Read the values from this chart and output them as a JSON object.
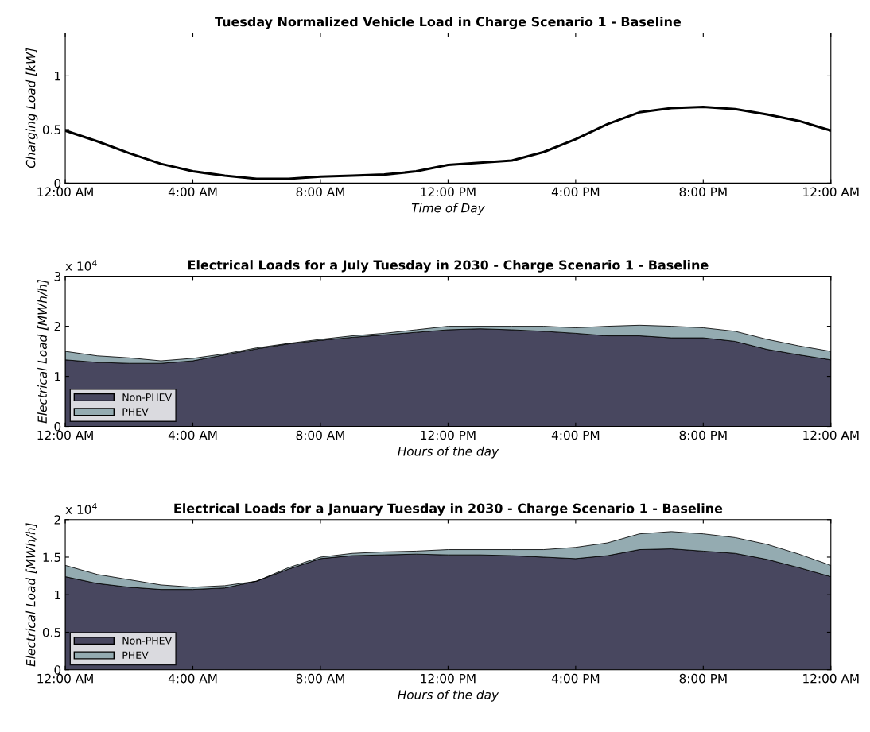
{
  "chart_data": [
    {
      "type": "line",
      "title": "Tuesday Normalized Vehicle Load in Charge Scenario 1 - Baseline",
      "xlabel": "Time of Day",
      "ylabel": "Charging Load [kW]",
      "x": [
        0,
        1,
        2,
        3,
        4,
        5,
        6,
        7,
        8,
        9,
        10,
        11,
        12,
        13,
        14,
        15,
        16,
        17,
        18,
        19,
        20,
        21,
        22,
        23,
        24
      ],
      "series": [
        {
          "color": "#000000",
          "values": [
            0.49,
            0.39,
            0.28,
            0.18,
            0.11,
            0.07,
            0.04,
            0.04,
            0.06,
            0.07,
            0.08,
            0.11,
            0.17,
            0.19,
            0.21,
            0.29,
            0.41,
            0.55,
            0.66,
            0.7,
            0.71,
            0.69,
            0.64,
            0.58,
            0.49
          ]
        }
      ],
      "xlim": [
        0,
        24
      ],
      "xticks": [
        {
          "value": 0,
          "label": "12:00 AM"
        },
        {
          "value": 4,
          "label": "4:00 AM"
        },
        {
          "value": 8,
          "label": "8:00 AM"
        },
        {
          "value": 12,
          "label": "12:00 PM"
        },
        {
          "value": 16,
          "label": "4:00 PM"
        },
        {
          "value": 20,
          "label": "8:00 PM"
        },
        {
          "value": 24,
          "label": "12:00 AM"
        }
      ],
      "ylim": [
        0,
        1.4
      ],
      "yticks": [
        0,
        0.5,
        1
      ],
      "grid": false,
      "legend": false
    },
    {
      "type": "area",
      "stacked": true,
      "title": "Electrical Loads for a July Tuesday in 2030 - Charge Scenario 1 - Baseline",
      "xlabel": "Hours of the day",
      "ylabel": "Electrical Load [MWh/h]",
      "annotations": [
        "x 10$^{4}$"
      ],
      "x": [
        0,
        1,
        2,
        3,
        4,
        5,
        6,
        7,
        8,
        9,
        10,
        11,
        12,
        13,
        14,
        15,
        16,
        17,
        18,
        19,
        20,
        21,
        22,
        23,
        24
      ],
      "series": [
        {
          "name": "Non-PHEV",
          "color": "#48475f",
          "values": [
            1.33,
            1.28,
            1.26,
            1.26,
            1.31,
            1.43,
            1.55,
            1.65,
            1.72,
            1.78,
            1.83,
            1.88,
            1.93,
            1.95,
            1.93,
            1.9,
            1.86,
            1.81,
            1.81,
            1.77,
            1.77,
            1.7,
            1.54,
            1.43,
            1.33
          ]
        },
        {
          "name": "PHEV",
          "color": "#94abb1",
          "values": [
            0.17,
            0.13,
            0.11,
            0.05,
            0.05,
            0.02,
            0.02,
            0.01,
            0.02,
            0.03,
            0.03,
            0.05,
            0.07,
            0.05,
            0.07,
            0.1,
            0.11,
            0.19,
            0.21,
            0.23,
            0.2,
            0.2,
            0.2,
            0.18,
            0.17
          ]
        }
      ],
      "xlim": [
        0,
        24
      ],
      "xticks": [
        {
          "value": 0,
          "label": "12:00 AM"
        },
        {
          "value": 4,
          "label": "4:00 AM"
        },
        {
          "value": 8,
          "label": "8:00 AM"
        },
        {
          "value": 12,
          "label": "12:00 PM"
        },
        {
          "value": 16,
          "label": "4:00 PM"
        },
        {
          "value": 20,
          "label": "8:00 PM"
        },
        {
          "value": 24,
          "label": "12:00 AM"
        }
      ],
      "ylim": [
        0,
        3
      ],
      "yticks": [
        0,
        1,
        2,
        3
      ],
      "grid": false,
      "legend": "bottom left"
    },
    {
      "type": "area",
      "stacked": true,
      "title": "Electrical Loads for a January Tuesday in 2030 - Charge Scenario 1 - Baseline",
      "xlabel": "Hours of the day",
      "ylabel": "Electrical Load [MWh/h]",
      "annotations": [
        "x 10$^{4}$"
      ],
      "x": [
        0,
        1,
        2,
        3,
        4,
        5,
        6,
        7,
        8,
        9,
        10,
        11,
        12,
        13,
        14,
        15,
        16,
        17,
        18,
        19,
        20,
        21,
        22,
        23,
        24
      ],
      "series": [
        {
          "name": "Non-PHEV",
          "color": "#48475f",
          "values": [
            1.24,
            1.15,
            1.1,
            1.07,
            1.07,
            1.09,
            1.18,
            1.34,
            1.48,
            1.52,
            1.53,
            1.54,
            1.53,
            1.53,
            1.52,
            1.5,
            1.48,
            1.52,
            1.6,
            1.61,
            1.58,
            1.55,
            1.47,
            1.36,
            1.24
          ]
        },
        {
          "name": "PHEV",
          "color": "#94abb1",
          "values": [
            0.15,
            0.12,
            0.1,
            0.06,
            0.03,
            0.03,
            0,
            0.02,
            0.02,
            0.03,
            0.04,
            0.04,
            0.07,
            0.07,
            0.08,
            0.1,
            0.15,
            0.17,
            0.21,
            0.23,
            0.23,
            0.21,
            0.2,
            0.18,
            0.15
          ]
        }
      ],
      "xlim": [
        0,
        24
      ],
      "xticks": [
        {
          "value": 0,
          "label": "12:00 AM"
        },
        {
          "value": 4,
          "label": "4:00 AM"
        },
        {
          "value": 8,
          "label": "8:00 AM"
        },
        {
          "value": 12,
          "label": "12:00 PM"
        },
        {
          "value": 16,
          "label": "4:00 PM"
        },
        {
          "value": 20,
          "label": "8:00 PM"
        },
        {
          "value": 24,
          "label": "12:00 AM"
        }
      ],
      "ylim": [
        0,
        2
      ],
      "yticks": [
        0,
        0.5,
        1,
        1.5,
        2
      ],
      "grid": false,
      "legend": "bottom left"
    }
  ]
}
